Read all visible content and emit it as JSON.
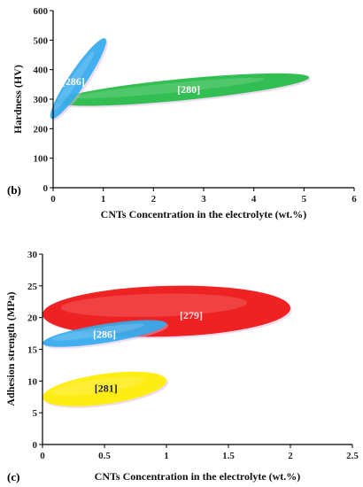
{
  "chart_data": [
    {
      "type": "scatter",
      "panel_label": "(b)",
      "xlabel": "CNTs Concentration in the electrolyte (wt.%)",
      "ylabel": "Hardness (HV)",
      "xlim": [
        0,
        6
      ],
      "ylim": [
        0,
        600
      ],
      "xticks": [
        0,
        1,
        2,
        3,
        4,
        5,
        6
      ],
      "yticks": [
        0,
        100,
        200,
        300,
        400,
        500,
        600
      ],
      "regions": [
        {
          "name": "[280]",
          "color": "#22bb44",
          "x_range": [
            0.05,
            5.1
          ],
          "y_range": [
            255,
            410
          ]
        },
        {
          "name": "[286]",
          "color": "#33aaee",
          "x_range": [
            0.0,
            1.0
          ],
          "y_range": [
            230,
            510
          ]
        }
      ]
    },
    {
      "type": "scatter",
      "panel_label": "(c)",
      "xlabel": "CNTs Concentration in the electrolyte (wt.%)",
      "ylabel": "Adhesion strength (MPa)",
      "xlim": [
        0,
        2.5
      ],
      "ylim": [
        0,
        30
      ],
      "xticks": [
        0,
        0.5,
        1,
        1.5,
        2,
        2.5
      ],
      "yticks": [
        0,
        5,
        10,
        15,
        20,
        25,
        30
      ],
      "regions": [
        {
          "name": "[279]",
          "color": "#ee1111",
          "x_range": [
            0.0,
            2.0
          ],
          "y_range": [
            17,
            25
          ]
        },
        {
          "name": "[286]",
          "color": "#33aaee",
          "x_range": [
            0.0,
            1.0
          ],
          "y_range": [
            14.5,
            20.5
          ]
        },
        {
          "name": "[281]",
          "color": "#ffee00",
          "x_range": [
            0.0,
            1.0
          ],
          "y_range": [
            5,
            12.5
          ]
        }
      ]
    }
  ]
}
